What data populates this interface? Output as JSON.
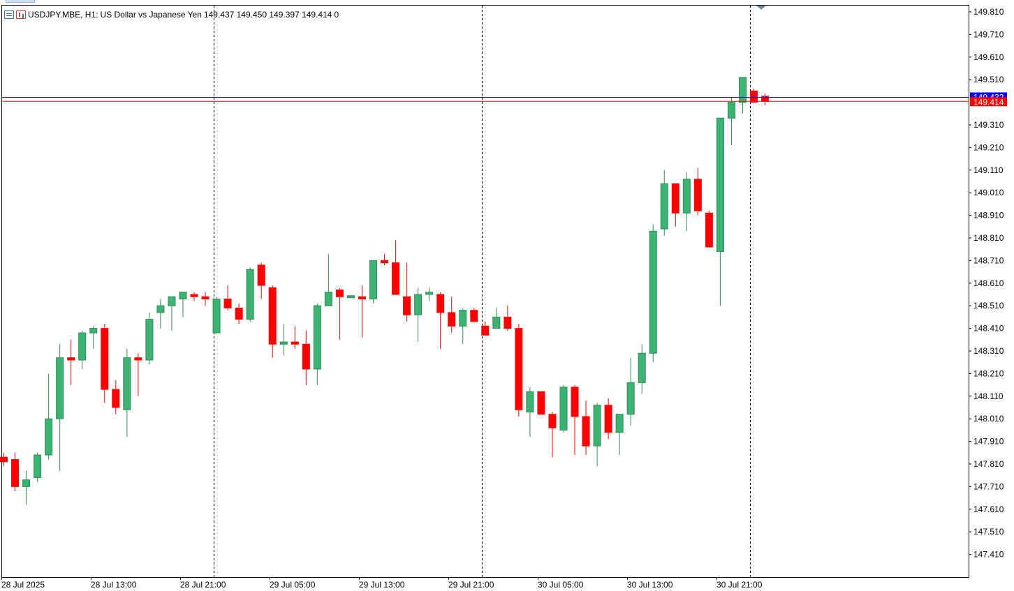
{
  "header": {
    "symbol": "USDJPY.MBE, H1:",
    "description": "US Dollar vs Japanese Yen",
    "ohlc": "149.437 149.450 149.397 149.414",
    "volume": "0",
    "list_icon": "chart-list-icon",
    "candles_icon": "candlestick-icon"
  },
  "colors": {
    "bull": "#3cb371",
    "bear": "#ff0000",
    "wick_bull": "#2e8b57",
    "wick_bear": "#ff0000",
    "ask_line": "#0000ff",
    "bid_line": "#ff0000",
    "bid_label_bg": "#ff0000",
    "ask_label_bg": "#0000ff",
    "grid_separator": "#000000",
    "axis_text": "#000000"
  },
  "chart_data": {
    "type": "candlestick",
    "timeframe": "H1",
    "y_ticks": [
      "149.810",
      "149.710",
      "149.610",
      "149.510",
      "149.310",
      "149.210",
      "149.110",
      "149.010",
      "148.910",
      "148.810",
      "148.710",
      "148.610",
      "148.510",
      "148.410",
      "148.310",
      "148.210",
      "148.110",
      "148.010",
      "147.910",
      "147.810",
      "147.710",
      "147.610",
      "147.510",
      "147.410"
    ],
    "x_labels": [
      "28 Jul 2025",
      "28 Jul 13:00",
      "28 Jul 21:00",
      "29 Jul 05:00",
      "29 Jul 13:00",
      "29 Jul 21:00",
      "30 Jul 05:00",
      "30 Jul 13:00",
      "30 Jul 21:00"
    ],
    "day_separators_after_label": [
      "28 Jul 21:00",
      "29 Jul 21:00",
      "30 Jul 21:00"
    ],
    "bid_price": "149.414",
    "ask_price": "149.432",
    "ylim": [
      147.335,
      149.84
    ],
    "candles": [
      {
        "o": 147.84,
        "h": 147.86,
        "l": 147.8,
        "c": 147.82
      },
      {
        "o": 147.83,
        "h": 147.86,
        "l": 147.69,
        "c": 147.71
      },
      {
        "o": 147.71,
        "h": 147.78,
        "l": 147.63,
        "c": 147.74
      },
      {
        "o": 147.75,
        "h": 147.86,
        "l": 147.73,
        "c": 147.85
      },
      {
        "o": 147.85,
        "h": 148.21,
        "l": 147.83,
        "c": 148.01
      },
      {
        "o": 148.01,
        "h": 148.34,
        "l": 147.78,
        "c": 148.28
      },
      {
        "o": 148.28,
        "h": 148.36,
        "l": 148.16,
        "c": 148.27
      },
      {
        "o": 148.27,
        "h": 148.4,
        "l": 148.23,
        "c": 148.39
      },
      {
        "o": 148.39,
        "h": 148.42,
        "l": 148.32,
        "c": 148.41
      },
      {
        "o": 148.41,
        "h": 148.43,
        "l": 148.08,
        "c": 148.14
      },
      {
        "o": 148.14,
        "h": 148.18,
        "l": 148.03,
        "c": 148.06
      },
      {
        "o": 148.05,
        "h": 148.32,
        "l": 147.93,
        "c": 148.28
      },
      {
        "o": 148.28,
        "h": 148.3,
        "l": 148.11,
        "c": 148.27
      },
      {
        "o": 148.27,
        "h": 148.48,
        "l": 148.25,
        "c": 148.45
      },
      {
        "o": 148.48,
        "h": 148.54,
        "l": 148.41,
        "c": 148.51
      },
      {
        "o": 148.51,
        "h": 148.55,
        "l": 148.4,
        "c": 148.55
      },
      {
        "o": 148.54,
        "h": 148.57,
        "l": 148.46,
        "c": 148.57
      },
      {
        "o": 148.56,
        "h": 148.57,
        "l": 148.53,
        "c": 148.55
      },
      {
        "o": 148.55,
        "h": 148.57,
        "l": 148.51,
        "c": 148.54
      },
      {
        "o": 148.39,
        "h": 148.55,
        "l": 148.39,
        "c": 148.54
      },
      {
        "o": 148.54,
        "h": 148.6,
        "l": 148.49,
        "c": 148.5
      },
      {
        "o": 148.5,
        "h": 148.52,
        "l": 148.43,
        "c": 148.45
      },
      {
        "o": 148.45,
        "h": 148.68,
        "l": 148.44,
        "c": 148.67
      },
      {
        "o": 148.69,
        "h": 148.7,
        "l": 148.54,
        "c": 148.6
      },
      {
        "o": 148.59,
        "h": 148.6,
        "l": 148.28,
        "c": 148.34
      },
      {
        "o": 148.34,
        "h": 148.43,
        "l": 148.29,
        "c": 148.35
      },
      {
        "o": 148.35,
        "h": 148.42,
        "l": 148.32,
        "c": 148.34
      },
      {
        "o": 148.34,
        "h": 148.4,
        "l": 148.16,
        "c": 148.23
      },
      {
        "o": 148.23,
        "h": 148.52,
        "l": 148.16,
        "c": 148.51
      },
      {
        "o": 148.51,
        "h": 148.74,
        "l": 148.51,
        "c": 148.57
      },
      {
        "o": 148.58,
        "h": 148.59,
        "l": 148.36,
        "c": 148.55
      },
      {
        "o": 148.55,
        "h": 148.55,
        "l": 148.55,
        "c": 148.55
      },
      {
        "o": 148.55,
        "h": 148.6,
        "l": 148.37,
        "c": 148.54
      },
      {
        "o": 148.54,
        "h": 148.71,
        "l": 148.52,
        "c": 148.71
      },
      {
        "o": 148.71,
        "h": 148.74,
        "l": 148.69,
        "c": 148.7
      },
      {
        "o": 148.7,
        "h": 148.8,
        "l": 148.56,
        "c": 148.56
      },
      {
        "o": 148.55,
        "h": 148.7,
        "l": 148.44,
        "c": 148.47
      },
      {
        "o": 148.47,
        "h": 148.59,
        "l": 148.35,
        "c": 148.56
      },
      {
        "o": 148.56,
        "h": 148.59,
        "l": 148.53,
        "c": 148.57
      },
      {
        "o": 148.56,
        "h": 148.57,
        "l": 148.32,
        "c": 148.48
      },
      {
        "o": 148.48,
        "h": 148.55,
        "l": 148.39,
        "c": 148.42
      },
      {
        "o": 148.42,
        "h": 148.5,
        "l": 148.34,
        "c": 148.49
      },
      {
        "o": 148.49,
        "h": 148.5,
        "l": 148.44,
        "c": 148.44
      },
      {
        "o": 148.42,
        "h": 148.44,
        "l": 148.38,
        "c": 148.38
      },
      {
        "o": 148.41,
        "h": 148.5,
        "l": 148.41,
        "c": 148.46
      },
      {
        "o": 148.46,
        "h": 148.51,
        "l": 148.4,
        "c": 148.41
      },
      {
        "o": 148.41,
        "h": 148.43,
        "l": 148.02,
        "c": 148.05
      },
      {
        "o": 148.04,
        "h": 148.15,
        "l": 147.93,
        "c": 148.13
      },
      {
        "o": 148.13,
        "h": 148.13,
        "l": 148.03,
        "c": 148.03
      },
      {
        "o": 148.03,
        "h": 148.04,
        "l": 147.84,
        "c": 147.97
      },
      {
        "o": 147.96,
        "h": 148.16,
        "l": 147.95,
        "c": 148.15
      },
      {
        "o": 148.15,
        "h": 148.16,
        "l": 147.85,
        "c": 148.02
      },
      {
        "o": 148.02,
        "h": 148.09,
        "l": 147.85,
        "c": 147.89
      },
      {
        "o": 147.89,
        "h": 148.08,
        "l": 147.8,
        "c": 148.07
      },
      {
        "o": 148.07,
        "h": 148.1,
        "l": 147.92,
        "c": 147.95
      },
      {
        "o": 147.95,
        "h": 148.02,
        "l": 147.85,
        "c": 148.03
      },
      {
        "o": 148.03,
        "h": 148.28,
        "l": 147.98,
        "c": 148.17
      },
      {
        "o": 148.17,
        "h": 148.34,
        "l": 148.12,
        "c": 148.3
      },
      {
        "o": 148.3,
        "h": 148.87,
        "l": 148.26,
        "c": 148.84
      },
      {
        "o": 148.85,
        "h": 149.11,
        "l": 148.82,
        "c": 149.05
      },
      {
        "o": 149.05,
        "h": 149.05,
        "l": 148.86,
        "c": 148.92
      },
      {
        "o": 148.92,
        "h": 149.1,
        "l": 148.84,
        "c": 149.07
      },
      {
        "o": 149.07,
        "h": 149.12,
        "l": 148.91,
        "c": 148.93
      },
      {
        "o": 148.92,
        "h": 148.93,
        "l": 148.77,
        "c": 148.77
      },
      {
        "o": 148.75,
        "h": 149.34,
        "l": 148.51,
        "c": 149.34
      },
      {
        "o": 149.34,
        "h": 149.43,
        "l": 149.22,
        "c": 149.41
      },
      {
        "o": 149.41,
        "h": 149.52,
        "l": 149.36,
        "c": 149.52
      },
      {
        "o": 149.46,
        "h": 149.47,
        "l": 149.41,
        "c": 149.41
      },
      {
        "o": 149.437,
        "h": 149.45,
        "l": 149.397,
        "c": 149.414
      }
    ]
  }
}
